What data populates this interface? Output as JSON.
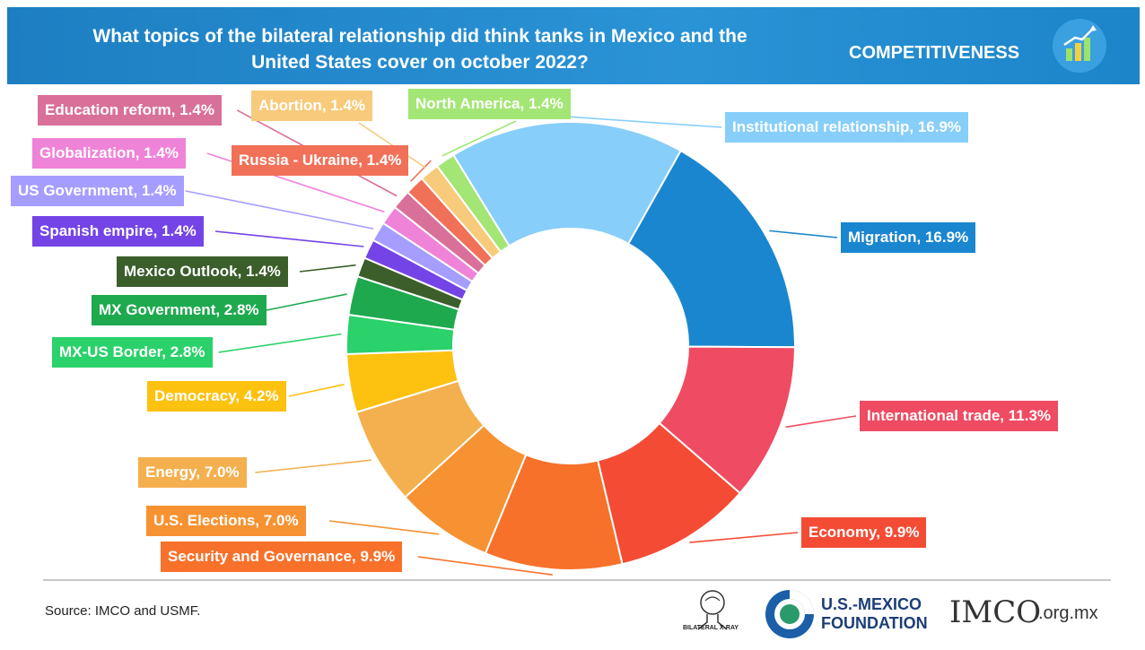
{
  "header": {
    "title_line1": "What topics of the bilateral relationship did think tanks in Mexico and the",
    "title_line2": "United States cover on october 2022?",
    "section": "COMPETITIVENESS",
    "icon": "bar-chart-growth-icon",
    "colors": {
      "background": "#1f86c9",
      "text": "#ffffff"
    }
  },
  "footer": {
    "source": "Source: IMCO and USMF.",
    "logos": {
      "bilateral_xray": "BILATERAL X-RAY",
      "usmf_line1": "U.S.-MEXICO",
      "usmf_line2": "FOUNDATION",
      "imco": "IMCO",
      "imco_suffix": ".org.mx"
    }
  },
  "chart_data": {
    "type": "pie",
    "donut": true,
    "title": "What topics of the bilateral relationship did think tanks in Mexico and the United States cover on october 2022?",
    "unit": "%",
    "slices": [
      {
        "label": "Institutional relationship, 16.9%",
        "value": 16.9,
        "color": "#87cefa"
      },
      {
        "label": "Migration, 16.9%",
        "value": 16.9,
        "color": "#1a86d0"
      },
      {
        "label": "International trade, 11.3%",
        "value": 11.3,
        "color": "#ef4b63"
      },
      {
        "label": "Economy, 9.9%",
        "value": 9.9,
        "color": "#f44b34"
      },
      {
        "label": "Security and Governance, 9.9%",
        "value": 9.9,
        "color": "#f7712b"
      },
      {
        "label": "U.S. Elections, 7.0%",
        "value": 7.0,
        "color": "#f79232"
      },
      {
        "label": "Energy, 7.0%",
        "value": 7.0,
        "color": "#f4b04e"
      },
      {
        "label": "Democracy, 4.2%",
        "value": 4.2,
        "color": "#fdc110"
      },
      {
        "label": "MX-US Border, 2.8%",
        "value": 2.8,
        "color": "#2bd16a"
      },
      {
        "label": "MX Government, 2.8%",
        "value": 2.8,
        "color": "#1ea94f"
      },
      {
        "label": "Mexico Outlook, 1.4%",
        "value": 1.4,
        "color": "#3b5e2b"
      },
      {
        "label": "Spanish empire, 1.4%",
        "value": 1.4,
        "color": "#7444e6"
      },
      {
        "label": "US Government, 1.4%",
        "value": 1.4,
        "color": "#a59dff"
      },
      {
        "label": "Globalization, 1.4%",
        "value": 1.4,
        "color": "#ef83d8"
      },
      {
        "label": "Education reform, 1.4%",
        "value": 1.4,
        "color": "#d9709a"
      },
      {
        "label": "Russia - Ukraine, 1.4%",
        "value": 1.4,
        "color": "#f07158"
      },
      {
        "label": "Abortion, 1.4%",
        "value": 1.4,
        "color": "#f7cb7b"
      },
      {
        "label": "North America, 1.4%",
        "value": 1.4,
        "color": "#a3e676"
      }
    ]
  }
}
